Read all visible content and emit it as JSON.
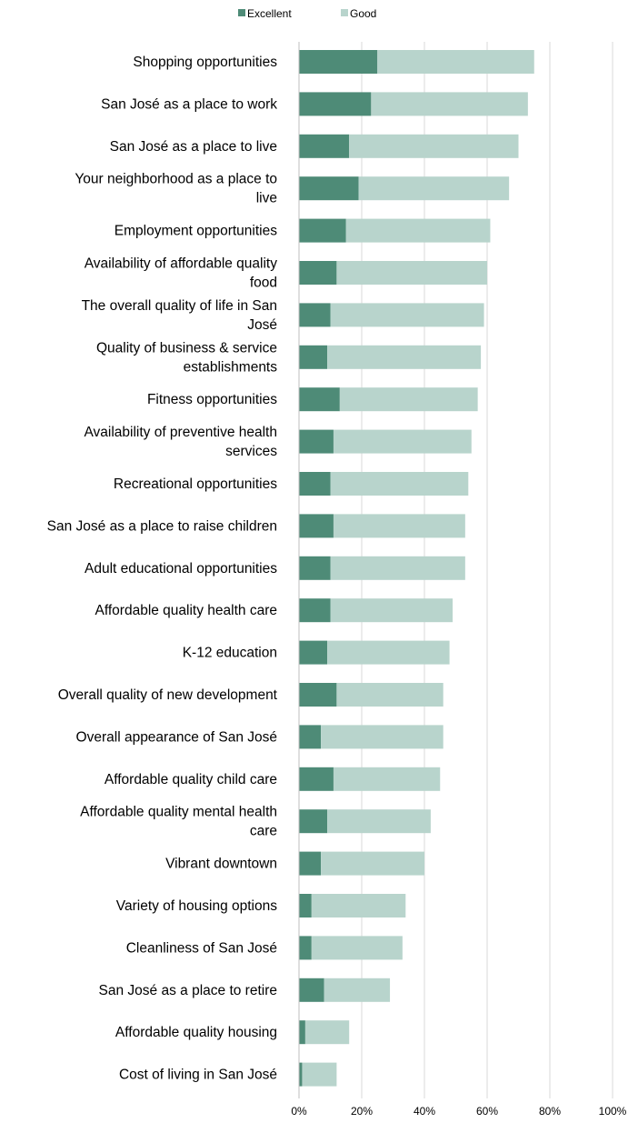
{
  "chart_data": {
    "type": "bar",
    "orientation": "horizontal",
    "stacked": true,
    "categories": [
      "Shopping opportunities",
      "San José as a place to work",
      "San José as a place to live",
      "Your neighborhood as a place to live",
      "Employment opportunities",
      "Availability of affordable quality food",
      "The overall quality of life in San José",
      "Quality of business & service establishments",
      "Fitness opportunities",
      "Availability of preventive health services",
      "Recreational opportunities",
      "San José as a place to raise children",
      "Adult educational opportunities",
      "Affordable quality health care",
      "K-12 education",
      "Overall quality of new development",
      "Overall appearance of San José",
      "Affordable quality child care",
      "Affordable quality mental health care",
      "Vibrant downtown",
      "Variety of housing options",
      "Cleanliness of San José",
      "San José as a place to retire",
      "Affordable quality housing",
      "Cost of living in San José"
    ],
    "category_lines": [
      [
        "Shopping opportunities"
      ],
      [
        "San José as a place to work"
      ],
      [
        "San José as a place to live"
      ],
      [
        "Your neighborhood as a place to",
        "live"
      ],
      [
        "Employment opportunities"
      ],
      [
        "Availability of affordable quality",
        "food"
      ],
      [
        "The overall quality of life in San",
        "José"
      ],
      [
        "Quality of business & service",
        "establishments"
      ],
      [
        "Fitness opportunities"
      ],
      [
        "Availability of preventive health",
        "services"
      ],
      [
        "Recreational opportunities"
      ],
      [
        "San José as a place to raise children"
      ],
      [
        "Adult educational opportunities"
      ],
      [
        "Affordable quality health care"
      ],
      [
        "K-12 education"
      ],
      [
        "Overall quality of new development"
      ],
      [
        "Overall appearance of San José"
      ],
      [
        "Affordable quality child care"
      ],
      [
        "Affordable quality mental health",
        "care"
      ],
      [
        "Vibrant downtown"
      ],
      [
        "Variety of housing options"
      ],
      [
        "Cleanliness of San José"
      ],
      [
        "San José as a place to retire"
      ],
      [
        "Affordable quality housing"
      ],
      [
        "Cost of living in San José"
      ]
    ],
    "series": [
      {
        "name": "Excellent",
        "color": "#4e8b77",
        "values": [
          25,
          23,
          16,
          19,
          15,
          12,
          10,
          9,
          13,
          11,
          10,
          11,
          10,
          10,
          9,
          12,
          7,
          11,
          9,
          7,
          4,
          4,
          8,
          2,
          1
        ]
      },
      {
        "name": "Good",
        "color": "#b8d4cc",
        "values": [
          50,
          50,
          54,
          48,
          46,
          48,
          49,
          49,
          44,
          44,
          44,
          42,
          43,
          39,
          39,
          34,
          39,
          34,
          33,
          33,
          30,
          29,
          21,
          14,
          11
        ]
      }
    ],
    "xlim": [
      0,
      100
    ],
    "x_ticks": [
      "0%",
      "20%",
      "40%",
      "60%",
      "80%",
      "100%"
    ],
    "grid": true,
    "legend_position": "top-center"
  }
}
